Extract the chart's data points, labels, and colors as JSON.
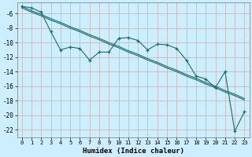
{
  "xlabel": "Humidex (Indice chaleur)",
  "background_color": "#cceeff",
  "grid_color": "#c8b8b8",
  "line_color": "#1a6b6b",
  "x_data": [
    0,
    1,
    2,
    3,
    4,
    5,
    6,
    7,
    8,
    9,
    10,
    11,
    12,
    13,
    14,
    15,
    16,
    17,
    18,
    19,
    20,
    21,
    22,
    23
  ],
  "y_main": [
    -5.0,
    -5.2,
    -5.8,
    -8.5,
    -11.0,
    -10.6,
    -10.8,
    -12.4,
    -11.3,
    -11.3,
    -9.4,
    -9.3,
    -9.7,
    -11.0,
    -10.2,
    -10.3,
    -10.8,
    -12.4,
    -14.6,
    -15.0,
    -16.2,
    -14.0,
    -22.2,
    -19.5
  ],
  "y_line1": [
    -5.0,
    -5.6,
    -6.1,
    -6.7,
    -7.2,
    -7.8,
    -8.3,
    -8.9,
    -9.4,
    -10.0,
    -10.5,
    -11.1,
    -11.6,
    -12.2,
    -12.7,
    -13.3,
    -13.8,
    -14.4,
    -14.9,
    -15.5,
    -16.0,
    -16.6,
    -17.1,
    -17.7
  ],
  "y_line2": [
    -5.2,
    -5.8,
    -6.3,
    -6.9,
    -7.4,
    -8.0,
    -8.5,
    -9.1,
    -9.6,
    -10.2,
    -10.7,
    -11.3,
    -11.8,
    -12.4,
    -12.9,
    -13.5,
    -14.0,
    -14.6,
    -15.1,
    -15.7,
    -16.2,
    -16.8,
    -17.3,
    -17.9
  ],
  "ylim": [
    -23.0,
    -4.5
  ],
  "xlim": [
    -0.5,
    23.5
  ],
  "yticks": [
    -22,
    -20,
    -18,
    -16,
    -14,
    -12,
    -10,
    -8,
    -6
  ],
  "xticks": [
    0,
    1,
    2,
    3,
    4,
    5,
    6,
    7,
    8,
    9,
    10,
    11,
    12,
    13,
    14,
    15,
    16,
    17,
    18,
    19,
    20,
    21,
    22,
    23
  ]
}
